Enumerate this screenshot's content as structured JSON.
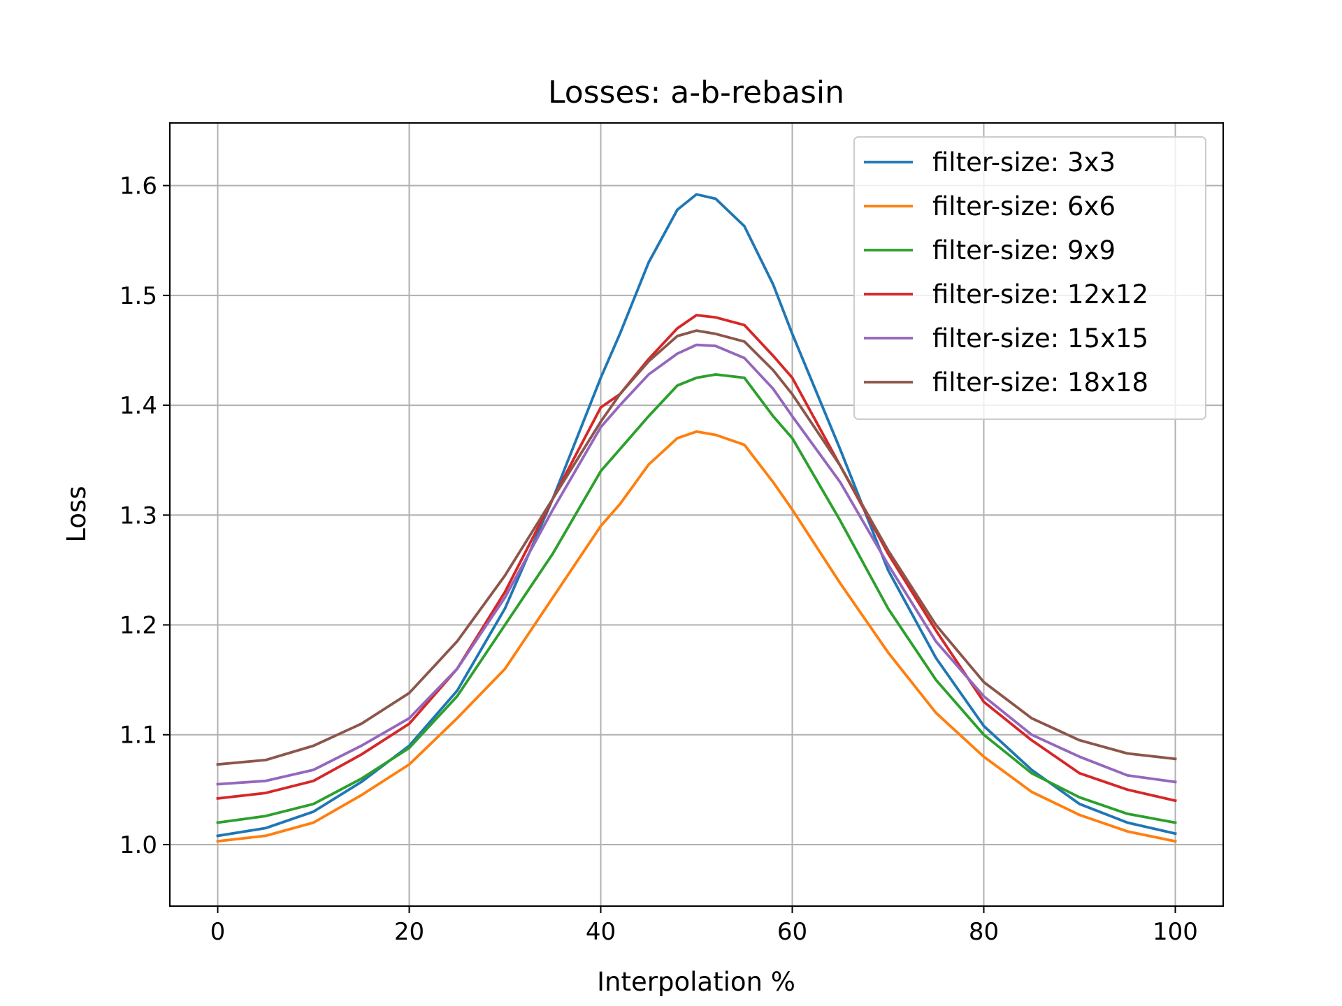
{
  "chart_data": {
    "type": "line",
    "title": "Losses: a-b-rebasin",
    "xlabel": "Interpolation %",
    "ylabel": "Loss",
    "xlim": [
      -5,
      105
    ],
    "ylim": [
      0.944,
      1.657
    ],
    "xticks": [
      0,
      20,
      40,
      60,
      80,
      100
    ],
    "yticks": [
      1.0,
      1.1,
      1.2,
      1.3,
      1.4,
      1.5,
      1.6
    ],
    "xtick_labels": [
      "0",
      "20",
      "40",
      "60",
      "80",
      "100"
    ],
    "ytick_labels": [
      "1.0",
      "1.1",
      "1.2",
      "1.3",
      "1.4",
      "1.5",
      "1.6"
    ],
    "grid": true,
    "legend_position": "top-right",
    "x": [
      0,
      5,
      10,
      15,
      20,
      25,
      30,
      35,
      40,
      42,
      45,
      48,
      50,
      52,
      55,
      58,
      60,
      65,
      70,
      75,
      80,
      85,
      90,
      95,
      100
    ],
    "series": [
      {
        "name": "filter-size: 3x3",
        "color": "#1f77b4",
        "values": [
          1.008,
          1.015,
          1.03,
          1.057,
          1.09,
          1.14,
          1.215,
          1.315,
          1.425,
          1.465,
          1.53,
          1.578,
          1.592,
          1.588,
          1.563,
          1.51,
          1.465,
          1.36,
          1.25,
          1.17,
          1.108,
          1.068,
          1.037,
          1.02,
          1.01
        ]
      },
      {
        "name": "filter-size: 6x6",
        "color": "#ff7f0e",
        "values": [
          1.003,
          1.008,
          1.02,
          1.045,
          1.073,
          1.115,
          1.16,
          1.225,
          1.29,
          1.31,
          1.346,
          1.37,
          1.376,
          1.373,
          1.364,
          1.33,
          1.305,
          1.238,
          1.175,
          1.12,
          1.08,
          1.048,
          1.027,
          1.012,
          1.003
        ]
      },
      {
        "name": "filter-size: 9x9",
        "color": "#2ca02c",
        "values": [
          1.02,
          1.026,
          1.037,
          1.06,
          1.088,
          1.135,
          1.2,
          1.265,
          1.34,
          1.36,
          1.39,
          1.418,
          1.425,
          1.428,
          1.425,
          1.39,
          1.37,
          1.295,
          1.215,
          1.15,
          1.1,
          1.065,
          1.043,
          1.028,
          1.02
        ]
      },
      {
        "name": "filter-size: 12x12",
        "color": "#d62728",
        "values": [
          1.042,
          1.047,
          1.058,
          1.082,
          1.11,
          1.16,
          1.23,
          1.315,
          1.398,
          1.41,
          1.442,
          1.47,
          1.482,
          1.48,
          1.473,
          1.445,
          1.425,
          1.345,
          1.265,
          1.195,
          1.13,
          1.095,
          1.065,
          1.05,
          1.04
        ]
      },
      {
        "name": "filter-size: 15x15",
        "color": "#9467bd",
        "values": [
          1.055,
          1.058,
          1.068,
          1.09,
          1.115,
          1.16,
          1.225,
          1.305,
          1.38,
          1.4,
          1.428,
          1.447,
          1.455,
          1.454,
          1.443,
          1.415,
          1.39,
          1.33,
          1.255,
          1.185,
          1.135,
          1.1,
          1.08,
          1.063,
          1.057
        ]
      },
      {
        "name": "filter-size: 18x18",
        "color": "#8c564b",
        "values": [
          1.073,
          1.077,
          1.09,
          1.11,
          1.138,
          1.185,
          1.245,
          1.315,
          1.385,
          1.41,
          1.44,
          1.463,
          1.468,
          1.465,
          1.458,
          1.432,
          1.41,
          1.345,
          1.268,
          1.2,
          1.148,
          1.115,
          1.095,
          1.083,
          1.078
        ]
      }
    ]
  }
}
